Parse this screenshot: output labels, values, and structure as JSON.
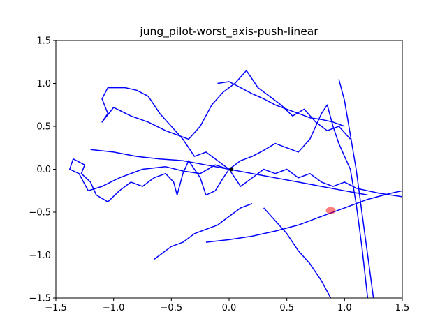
{
  "chart_data": {
    "type": "line",
    "title": "jung_pilot-worst_axis-push-linear",
    "xlabel": "",
    "ylabel": "",
    "xlim": [
      -1.5,
      1.5
    ],
    "ylim": [
      -1.5,
      1.5
    ],
    "grid": false,
    "x_ticks": [
      -1.5,
      -1.0,
      -0.5,
      0.0,
      0.5,
      1.0,
      1.5
    ],
    "y_ticks": [
      -1.5,
      -1.0,
      -0.5,
      0.0,
      0.5,
      1.0,
      1.5
    ],
    "x_tick_labels": [
      "−1.5",
      "−1.0",
      "−0.5",
      "0.0",
      "0.5",
      "1.0",
      "1.5"
    ],
    "y_tick_labels": [
      "−1.5",
      "−1.0",
      "−0.5",
      "0.0",
      "0.5",
      "1.0",
      "1.5"
    ],
    "line_color": "#0000ff",
    "series": [
      {
        "color": "#0000ff",
        "x": [
          0.0,
          -0.12,
          -0.25,
          -0.4,
          -0.55,
          -0.75,
          -0.95,
          -1.1,
          -1.22,
          -1.3,
          -1.38,
          -1.35,
          -1.25,
          -1.28,
          -1.2,
          -1.15,
          -1.05,
          -0.95,
          -0.85,
          -0.75,
          -0.65,
          -0.55,
          -0.48,
          -0.45,
          -0.4,
          -0.35,
          -0.25,
          -0.2,
          -0.12,
          -0.05,
          0.0,
          0.05,
          0.1,
          0.2,
          0.3,
          0.4,
          0.5,
          0.6,
          0.7,
          0.8,
          0.9,
          1.0,
          1.1,
          1.2,
          1.3,
          1.4,
          1.5
        ],
        "y": [
          0.0,
          0.05,
          -0.05,
          -0.02,
          0.03,
          0.0,
          -0.1,
          -0.2,
          -0.25,
          -0.05,
          0.0,
          0.12,
          0.05,
          -0.05,
          -0.15,
          -0.3,
          -0.38,
          -0.25,
          -0.15,
          -0.2,
          -0.1,
          -0.05,
          -0.15,
          -0.3,
          -0.05,
          0.1,
          -0.1,
          -0.3,
          -0.25,
          -0.1,
          0.0,
          -0.1,
          -0.2,
          -0.1,
          0.0,
          -0.05,
          0.0,
          -0.1,
          -0.05,
          -0.15,
          -0.2,
          -0.15,
          -0.22,
          -0.25,
          -0.28,
          -0.3,
          -0.32
        ]
      },
      {
        "color": "#0000ff",
        "x": [
          0.0,
          -0.1,
          -0.2,
          -0.3,
          -0.4,
          -0.5,
          -0.6,
          -0.7,
          -0.8,
          -0.9,
          -1.05,
          -1.1,
          -1.05,
          -1.1,
          -1.0,
          -0.85,
          -0.7,
          -0.55,
          -0.45,
          -0.35,
          -0.25,
          -0.15,
          -0.05,
          0.05,
          0.15,
          0.25,
          0.35,
          0.45,
          0.55,
          0.65,
          0.75,
          0.85,
          0.95,
          1.05
        ],
        "y": [
          0.0,
          0.1,
          0.2,
          0.15,
          0.35,
          0.5,
          0.65,
          0.85,
          0.92,
          0.95,
          0.95,
          0.82,
          0.65,
          0.55,
          0.72,
          0.62,
          0.55,
          0.45,
          0.4,
          0.35,
          0.5,
          0.75,
          0.9,
          1.0,
          1.15,
          0.95,
          0.85,
          0.75,
          0.62,
          0.7,
          0.55,
          0.45,
          0.5,
          0.35
        ]
      },
      {
        "color": "#0000ff",
        "x": [
          0.0,
          0.1,
          0.2,
          0.3,
          0.4,
          0.5,
          0.6,
          0.7,
          0.75,
          0.8,
          0.85,
          0.9,
          0.95,
          1.0,
          1.05,
          1.1,
          1.15,
          1.2
        ],
        "y": [
          0.0,
          0.1,
          0.15,
          0.22,
          0.3,
          0.25,
          0.2,
          0.35,
          0.5,
          0.65,
          0.75,
          0.5,
          0.3,
          0.15,
          0.0,
          -0.4,
          -0.9,
          -1.5
        ]
      },
      {
        "color": "#0000ff",
        "x": [
          -1.2,
          -1.0,
          -0.8,
          -0.6,
          -0.4,
          -0.2,
          0.0,
          0.2,
          0.4,
          0.6,
          0.8,
          1.0,
          1.2
        ],
        "y": [
          0.23,
          0.2,
          0.15,
          0.12,
          0.1,
          0.05,
          0.0,
          -0.05,
          -0.1,
          -0.15,
          -0.2,
          -0.25,
          -0.3
        ]
      },
      {
        "color": "#0000ff",
        "x": [
          -0.65,
          -0.5,
          -0.4,
          -0.3,
          -0.2,
          -0.1,
          0.0,
          0.1,
          0.2
        ],
        "y": [
          -1.05,
          -0.9,
          -0.85,
          -0.75,
          -0.7,
          -0.65,
          -0.55,
          -0.45,
          -0.4
        ]
      },
      {
        "color": "#0000ff",
        "x": [
          0.3,
          0.4,
          0.5,
          0.6,
          0.7,
          0.8,
          0.88
        ],
        "y": [
          -0.45,
          -0.6,
          -0.75,
          -0.95,
          -1.1,
          -1.3,
          -1.5
        ]
      },
      {
        "color": "#0000ff",
        "x": [
          -0.2,
          0.0,
          0.2,
          0.4,
          0.6,
          0.8,
          1.0,
          1.2,
          1.4,
          1.5
        ],
        "y": [
          -0.85,
          -0.82,
          -0.78,
          -0.72,
          -0.65,
          -0.55,
          -0.45,
          -0.35,
          -0.28,
          -0.25
        ]
      },
      {
        "color": "#0000ff",
        "x": [
          0.95,
          1.0,
          1.05,
          1.1,
          1.15,
          1.2,
          1.25
        ],
        "y": [
          1.05,
          0.8,
          0.4,
          0.0,
          -0.5,
          -1.0,
          -1.5
        ]
      },
      {
        "color": "#0000ff",
        "x": [
          -0.1,
          0.0,
          0.1,
          0.2,
          0.3,
          0.4,
          0.5,
          0.6,
          0.7,
          0.8,
          0.9,
          1.0
        ],
        "y": [
          1.0,
          1.02,
          0.95,
          0.88,
          0.82,
          0.75,
          0.7,
          0.65,
          0.6,
          0.58,
          0.55,
          0.5
        ]
      }
    ],
    "markers": [
      {
        "x": 0.88,
        "y": -0.48,
        "color": "#ff0000",
        "alpha": 0.5,
        "shape": "ellipse"
      },
      {
        "x": 0.02,
        "y": 0.0,
        "color": "#000000",
        "alpha": 1.0,
        "shape": "dot"
      }
    ]
  }
}
